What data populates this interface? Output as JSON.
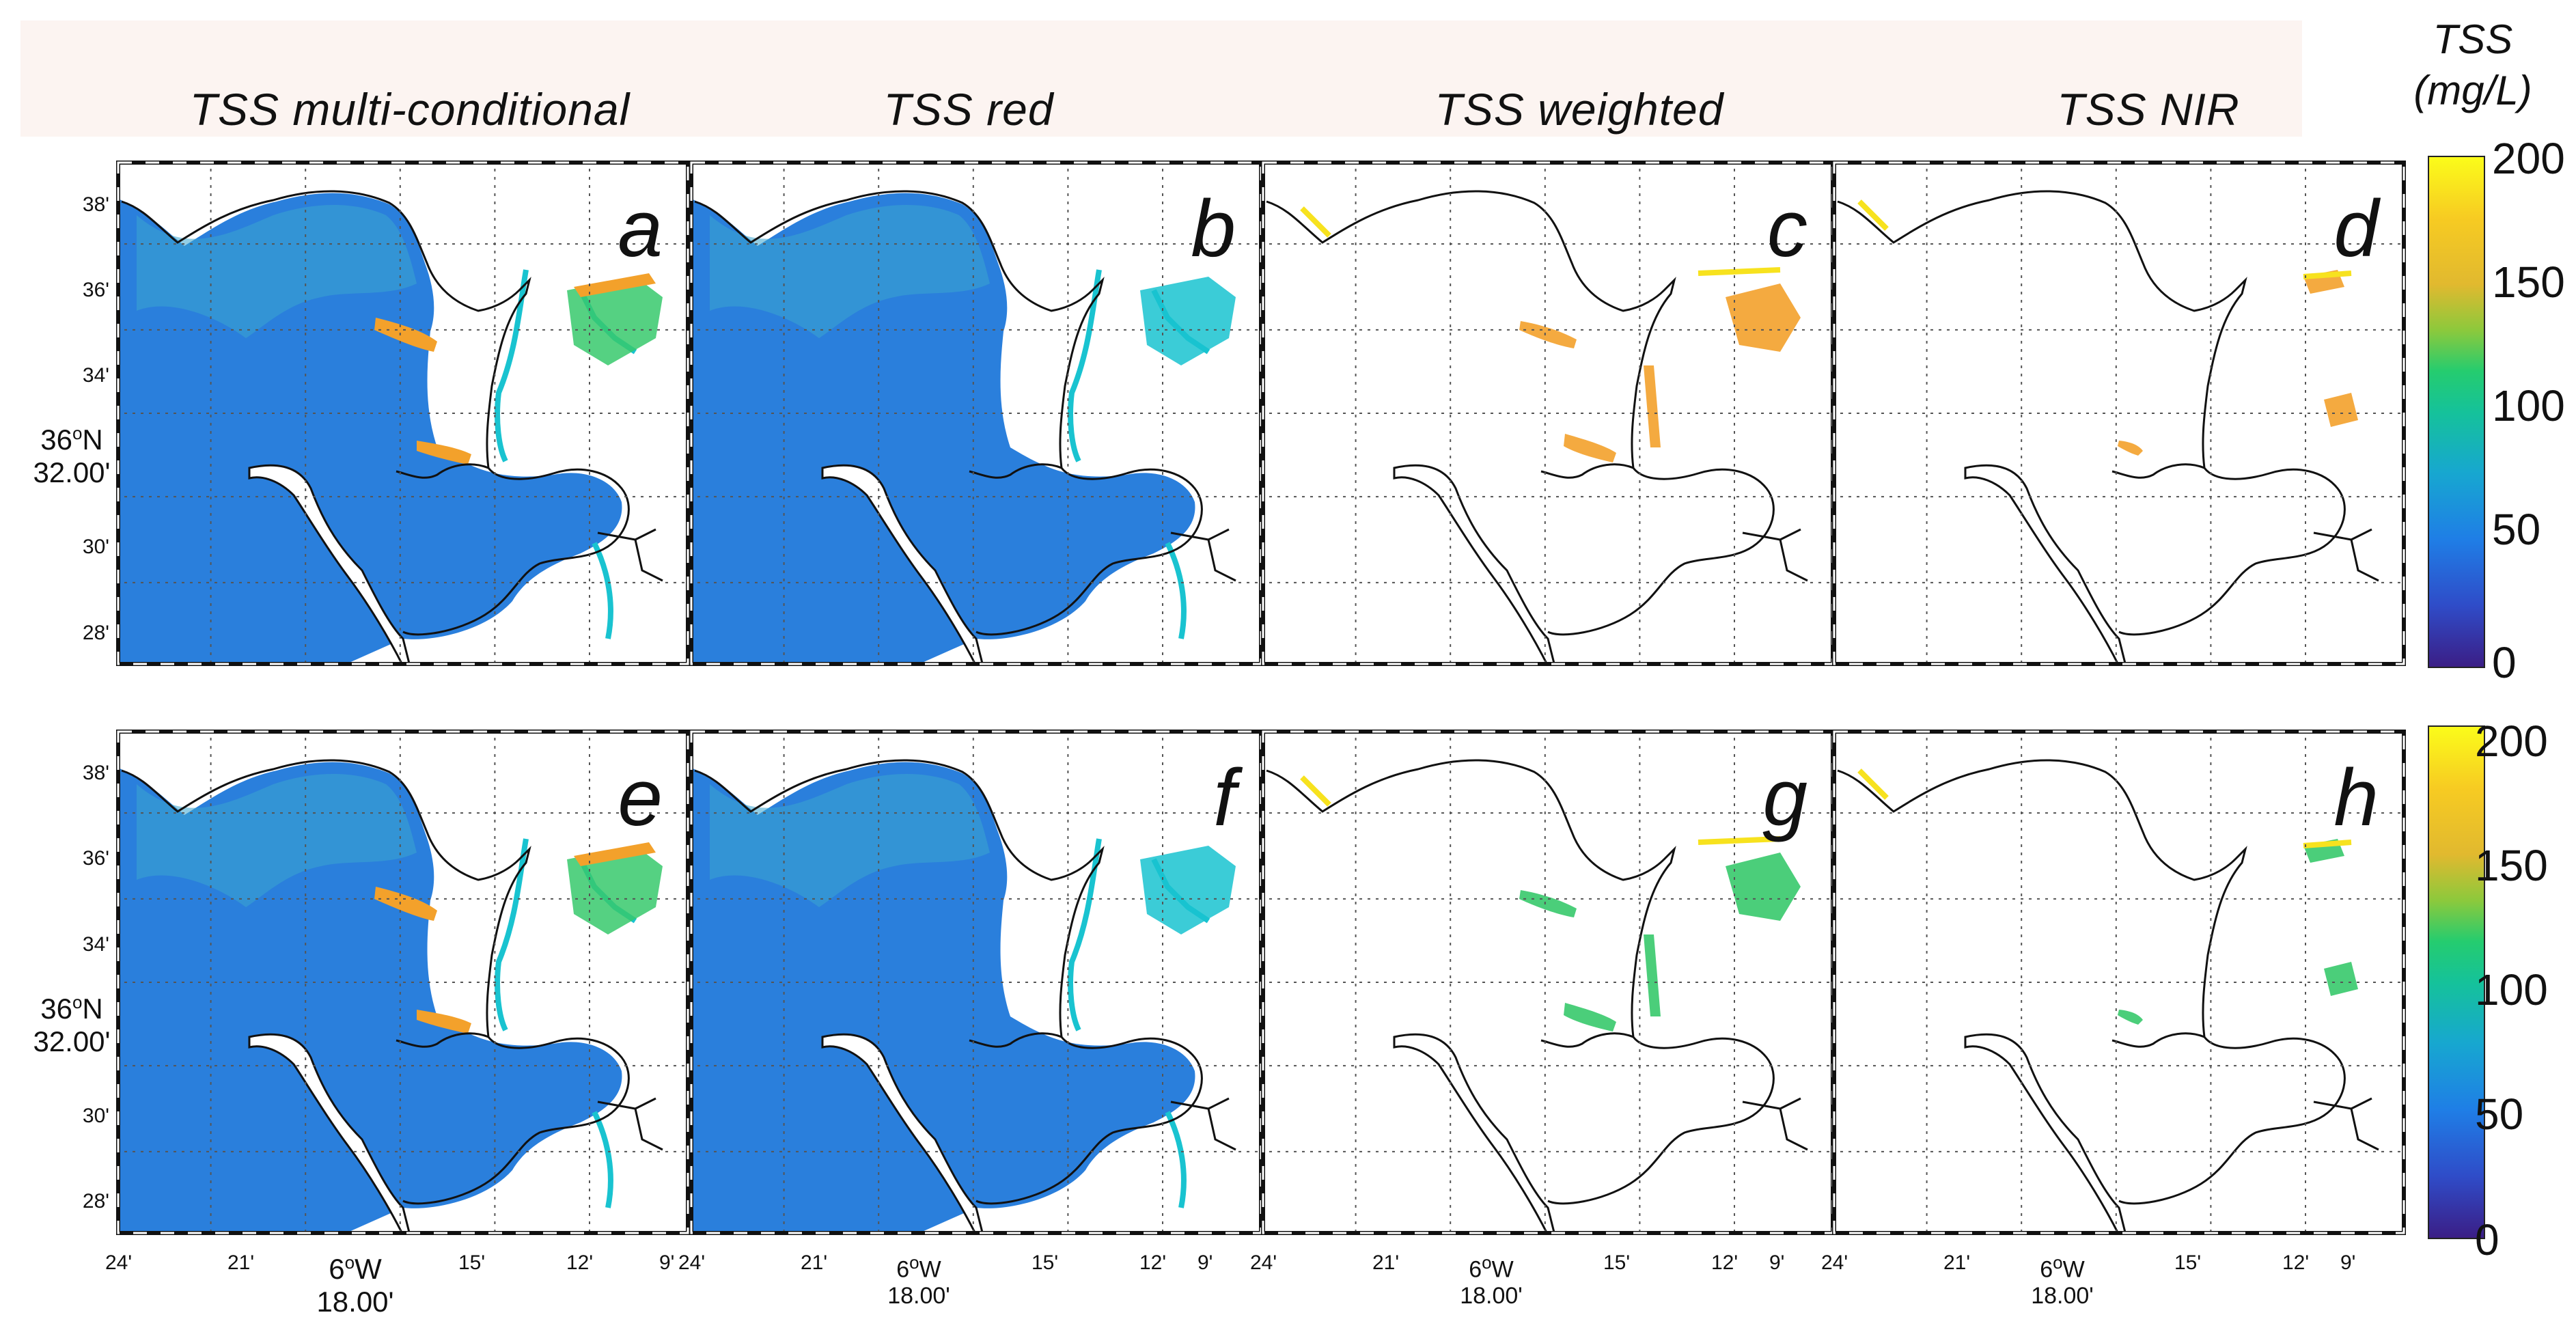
{
  "figure": {
    "column_titles": [
      "TSS multi-conditional",
      "TSS red",
      "TSS weighted",
      "TSS NIR"
    ],
    "panel_letters": [
      "a",
      "b",
      "c",
      "d",
      "e",
      "f",
      "g",
      "h"
    ],
    "lat_ticks": [
      "38'",
      "36'",
      "34'",
      "30'",
      "28'"
    ],
    "lat_main_deg": "36",
    "lat_main_unit": "N",
    "lat_main_min": "32.00'",
    "lon_ticks": [
      "24'",
      "21'",
      "15'",
      "12'",
      "9'"
    ],
    "lon_main_deg": "6",
    "lon_main_unit": "W",
    "lon_main_min": "18.00'",
    "degree_symbol": "o"
  },
  "colorbar": {
    "title_line1": "TSS",
    "title_line2": "(mg/L)",
    "ticks": [
      "200",
      "150",
      "100",
      "50",
      "0"
    ],
    "min": 0,
    "max": 200
  },
  "colors": {
    "water_blue": "#2a7fdc",
    "cyan": "#19c3d0",
    "green": "#37c96c",
    "orange": "#f3a12b",
    "yellow": "#f7e21e",
    "coast": "#111111"
  }
}
